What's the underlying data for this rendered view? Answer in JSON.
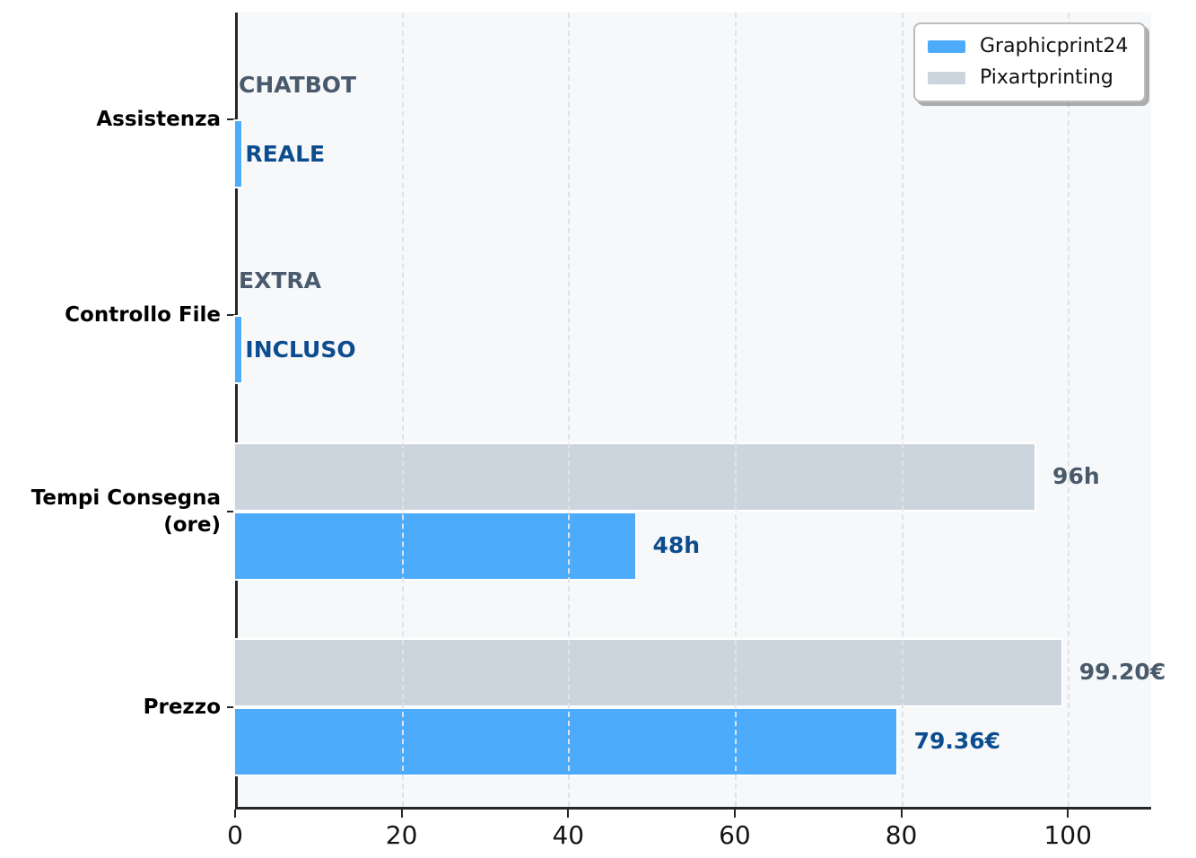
{
  "chart_data": {
    "type": "bar",
    "orientation": "horizontal",
    "title": "",
    "xlabel": "",
    "ylabel": "",
    "categories": [
      "Assistenza",
      "Controllo File",
      "Tempi Consegna\n(ore)",
      "Prezzo"
    ],
    "series": [
      {
        "name": "Graphicprint24",
        "color": "#4dabfc",
        "label_color": "#0d4c8f",
        "values": [
          0.8,
          0.8,
          48,
          79.36
        ],
        "value_labels": [
          "REALE",
          "INCLUSO",
          "48h",
          "79.36€"
        ]
      },
      {
        "name": "Pixartprinting",
        "color": "#ccd5de",
        "label_color": "#4a5a6d",
        "values": [
          0,
          0,
          96,
          99.2
        ],
        "value_labels": [
          "CHATBOT",
          "EXTRA",
          "96h",
          "99.20€"
        ]
      }
    ],
    "xlim": [
      0,
      110
    ],
    "xticks": [
      0,
      20,
      40,
      60,
      80,
      100
    ],
    "grid": "vertical-dashed",
    "legend_position": "top-right",
    "plot_background": "#f6f8fa",
    "gridline_color": "#dfe3e7",
    "axis_color": "#262626"
  }
}
